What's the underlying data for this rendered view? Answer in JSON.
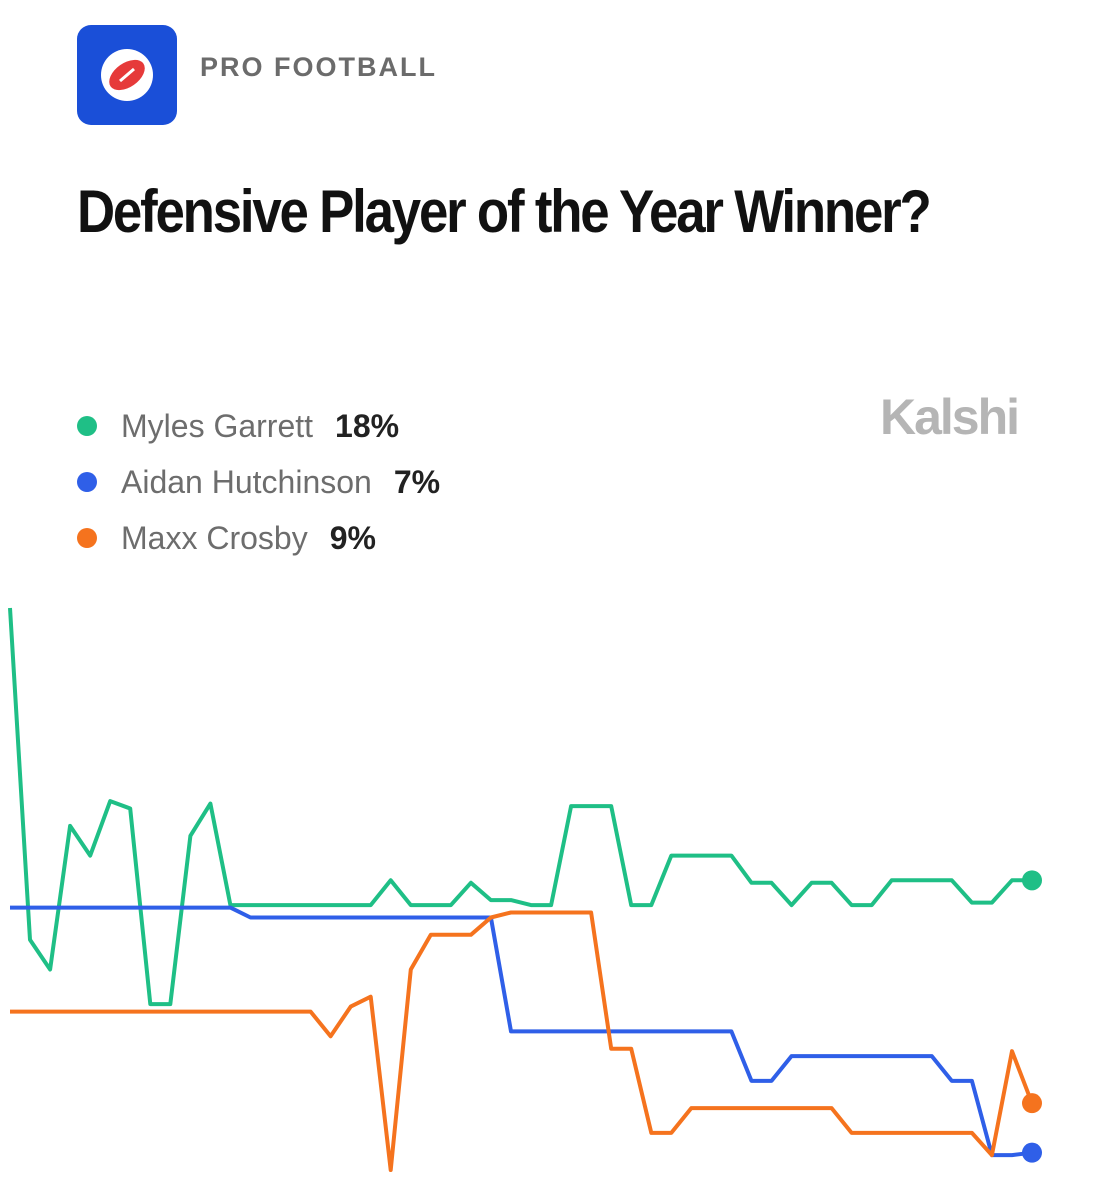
{
  "category": "PRO FOOTBALL",
  "brand": "Kalshi",
  "chart_data": {
    "type": "line",
    "title": "Defensive Player of the Year Winner?",
    "series": [
      {
        "name": "Myles Garrett",
        "color": "#1fbf86",
        "current": 18,
        "current_label": "18%",
        "values": [
          29.0,
          15.6,
          14.4,
          20.2,
          19.0,
          21.2,
          20.9,
          13.0,
          13.0,
          19.8,
          21.1,
          17.0,
          17.0,
          17.0,
          17.0,
          17.0,
          17.0,
          17.0,
          17.0,
          18.0,
          17.0,
          17.0,
          17.0,
          17.9,
          17.2,
          17.2,
          17.0,
          17.0,
          21.0,
          21.0,
          21.0,
          17.0,
          17.0,
          19.0,
          19.0,
          19.0,
          19.0,
          17.9,
          17.9,
          17.0,
          17.9,
          17.9,
          17.0,
          17.0,
          18.0,
          18.0,
          18.0,
          18.0,
          17.1,
          17.1,
          18.0,
          18
        ]
      },
      {
        "name": "Aidan Hutchinson",
        "color": "#2f5fe8",
        "current": 7,
        "current_label": "7%",
        "values": [
          16.9,
          16.9,
          16.9,
          16.9,
          16.9,
          16.9,
          16.9,
          16.9,
          16.9,
          16.9,
          16.9,
          16.9,
          16.5,
          16.5,
          16.5,
          16.5,
          16.5,
          16.5,
          16.5,
          16.5,
          16.5,
          16.5,
          16.5,
          16.5,
          16.5,
          11.9,
          11.9,
          11.9,
          11.9,
          11.9,
          11.9,
          11.9,
          11.9,
          11.9,
          11.9,
          11.9,
          11.9,
          9.9,
          9.9,
          10.9,
          10.9,
          10.9,
          10.9,
          10.9,
          10.9,
          10.9,
          10.9,
          9.9,
          9.9,
          6.9,
          6.9,
          7
        ]
      },
      {
        "name": "Maxx Crosby",
        "color": "#f5731e",
        "current": 9,
        "current_label": "9%",
        "values": [
          12.7,
          12.7,
          12.7,
          12.7,
          12.7,
          12.7,
          12.7,
          12.7,
          12.7,
          12.7,
          12.7,
          12.7,
          12.7,
          12.7,
          12.7,
          12.7,
          11.7,
          12.9,
          13.3,
          6.3,
          14.4,
          15.8,
          15.8,
          15.8,
          16.5,
          16.7,
          16.7,
          16.7,
          16.7,
          16.7,
          11.2,
          11.2,
          7.8,
          7.8,
          8.8,
          8.8,
          8.8,
          8.8,
          8.8,
          8.8,
          8.8,
          8.8,
          7.8,
          7.8,
          7.8,
          7.8,
          7.8,
          7.8,
          7.8,
          6.9,
          11.1,
          9
        ]
      }
    ]
  }
}
